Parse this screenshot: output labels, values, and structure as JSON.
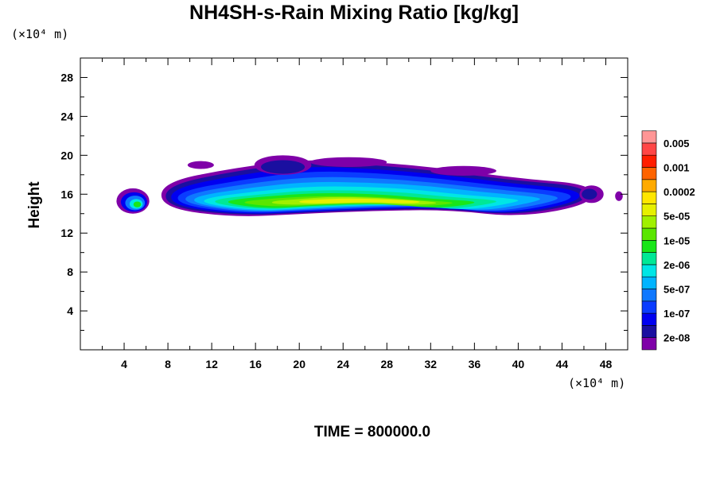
{
  "chart_data": {
    "type": "heatmap",
    "title": "NH4SH-s-Rain Mixing Ratio [kg/kg]",
    "ylabel": "Height",
    "x_unit": "(×10⁴ m)",
    "y_unit": "(×10⁴ m)",
    "xlim": [
      0,
      50
    ],
    "ylim": [
      0,
      30
    ],
    "x_ticks": [
      "4",
      "8",
      "12",
      "16",
      "20",
      "24",
      "28",
      "32",
      "36",
      "40",
      "44",
      "48"
    ],
    "y_ticks": [
      "4",
      "8",
      "12",
      "16",
      "20",
      "24",
      "28"
    ],
    "time_label": "TIME = 800000.0",
    "colorbar": {
      "colors": [
        "#7f00a8",
        "#1a0fa0",
        "#0000f0",
        "#0a3cff",
        "#0f78ff",
        "#00b4ff",
        "#00e6e6",
        "#00e896",
        "#19e619",
        "#5ae600",
        "#a0f000",
        "#e6f000",
        "#ffe600",
        "#ffaa00",
        "#ff6400",
        "#ff1e00",
        "#ff4646",
        "#ff9696"
      ],
      "labels": [
        "2e-08",
        "1e-07",
        "5e-07",
        "2e-06",
        "1e-05",
        "5e-05",
        "0.0002",
        "0.001",
        "0.005"
      ]
    },
    "field_description_levels": {
      "main_band_x_range": [
        7.5,
        46.5
      ],
      "main_band_height_range": [
        13.5,
        19.8
      ],
      "peak_height": 15.3,
      "peak_x_range": [
        20,
        31
      ],
      "peak_level": "0.0002",
      "outer_level": "2e-08"
    }
  }
}
